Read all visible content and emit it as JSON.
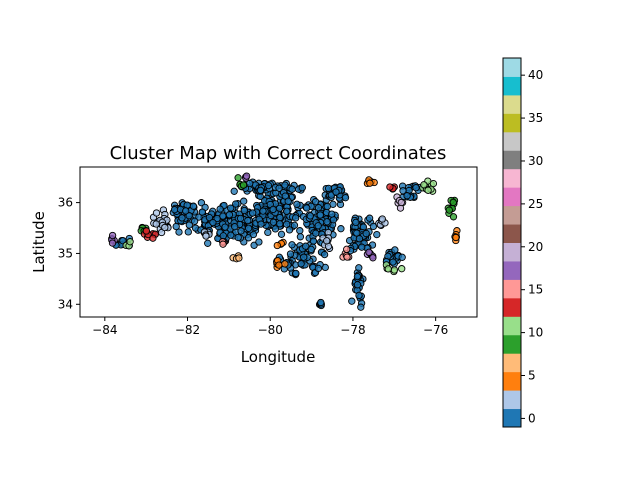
{
  "chart_data": {
    "type": "scatter",
    "title": "Cluster Map with Correct Coordinates",
    "xlabel": "Longitude",
    "ylabel": "Latitude",
    "xlim": [
      -84.6,
      -75.0
    ],
    "ylim": [
      33.75,
      36.7
    ],
    "xticks": [
      -84,
      -82,
      -80,
      -78,
      -76
    ],
    "xtick_labels": [
      "−84",
      "−82",
      "−80",
      "−78",
      "−76"
    ],
    "yticks": [
      34,
      35,
      36
    ],
    "ytick_labels": [
      "34",
      "35",
      "36"
    ],
    "grid": false,
    "colormap": "tab20",
    "colorbar": {
      "range": [
        -1,
        42
      ],
      "ticks": [
        0,
        5,
        10,
        15,
        20,
        25,
        30,
        35,
        40
      ],
      "tick_labels": [
        "0",
        "5",
        "10",
        "15",
        "20",
        "25",
        "30",
        "35",
        "40"
      ]
    },
    "cluster_regions": [
      {
        "cluster": 0,
        "regions": [
          [
            -81.0,
            35.6,
            1.6,
            0.6,
            160
          ],
          [
            -79.9,
            35.8,
            1.0,
            0.6,
            140
          ],
          [
            -78.8,
            35.6,
            0.7,
            0.8,
            90
          ],
          [
            -82.1,
            35.8,
            0.6,
            0.4,
            40
          ],
          [
            -79.2,
            34.9,
            0.8,
            0.6,
            60
          ],
          [
            -80.0,
            36.3,
            1.2,
            0.2,
            50
          ],
          [
            -78.4,
            36.2,
            0.5,
            0.3,
            30
          ],
          [
            -76.6,
            36.2,
            0.5,
            0.3,
            18
          ],
          [
            -83.6,
            35.2,
            0.4,
            0.2,
            10
          ]
        ]
      },
      {
        "cluster": 1,
        "regions": [
          [
            -77.0,
            34.9,
            0.4,
            0.3,
            18
          ],
          [
            -79.6,
            36.1,
            0.2,
            0.2,
            6
          ],
          [
            -78.8,
            34.0,
            0.3,
            0.1,
            5
          ]
        ]
      },
      {
        "cluster": 2,
        "regions": [
          [
            -77.8,
            35.4,
            0.5,
            0.6,
            70
          ],
          [
            -77.9,
            34.4,
            0.25,
            0.6,
            30
          ]
        ]
      },
      {
        "cluster": 3,
        "regions": [
          [
            -82.6,
            35.6,
            0.4,
            0.3,
            25
          ],
          [
            -78.6,
            35.2,
            0.3,
            0.3,
            8
          ]
        ]
      },
      {
        "cluster": 4,
        "regions": [
          [
            -77.3,
            35.6,
            0.2,
            0.2,
            8
          ],
          [
            -81.6,
            35.4,
            0.2,
            0.2,
            6
          ]
        ]
      },
      {
        "cluster": 5,
        "regions": [
          [
            -75.5,
            35.3,
            0.1,
            0.3,
            8
          ],
          [
            -79.7,
            35.2,
            0.2,
            0.1,
            4
          ]
        ]
      },
      {
        "cluster": 6,
        "regions": [
          [
            -79.8,
            34.8,
            0.3,
            0.2,
            8
          ],
          [
            -77.6,
            36.4,
            0.2,
            0.1,
            6
          ]
        ]
      },
      {
        "cluster": 7,
        "regions": [
          [
            -80.8,
            34.9,
            0.2,
            0.1,
            4
          ]
        ]
      },
      {
        "cluster": 9,
        "regions": [
          [
            -75.6,
            35.9,
            0.15,
            0.3,
            12
          ],
          [
            -83.0,
            35.5,
            0.2,
            0.1,
            5
          ]
        ]
      },
      {
        "cluster": 10,
        "regions": [
          [
            -80.7,
            36.4,
            0.2,
            0.15,
            6
          ]
        ]
      },
      {
        "cluster": 11,
        "regions": [
          [
            -77.0,
            34.7,
            0.3,
            0.15,
            6
          ]
        ]
      },
      {
        "cluster": 12,
        "regions": [
          [
            -76.2,
            36.3,
            0.3,
            0.2,
            10
          ],
          [
            -83.4,
            35.2,
            0.2,
            0.1,
            4
          ]
        ]
      },
      {
        "cluster": 13,
        "regions": [
          [
            -77.0,
            36.3,
            0.2,
            0.1,
            4
          ]
        ]
      },
      {
        "cluster": 14,
        "regions": [
          [
            -82.9,
            35.4,
            0.3,
            0.2,
            8
          ]
        ]
      },
      {
        "cluster": 15,
        "regions": [
          [
            -78.1,
            35.0,
            0.3,
            0.2,
            6
          ]
        ]
      },
      {
        "cluster": 16,
        "regions": [
          [
            -81.2,
            35.2,
            0.2,
            0.1,
            4
          ]
        ]
      },
      {
        "cluster": 17,
        "regions": [
          [
            -80.6,
            36.5,
            0.1,
            0.05,
            3
          ],
          [
            -83.8,
            35.3,
            0.1,
            0.2,
            4
          ]
        ]
      },
      {
        "cluster": 18,
        "regions": [
          [
            -77.6,
            35.0,
            0.2,
            0.15,
            6
          ]
        ]
      },
      {
        "cluster": 19,
        "regions": [
          [
            -76.9,
            36.0,
            0.2,
            0.2,
            6
          ]
        ]
      }
    ]
  }
}
